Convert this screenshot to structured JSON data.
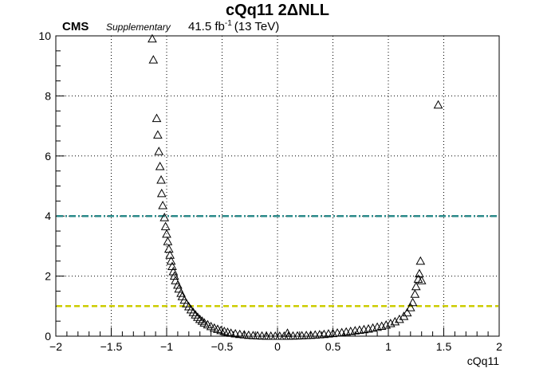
{
  "header": {
    "title": "cQq11 2ΔNLL",
    "experiment": "CMS",
    "tag": "Supplementary",
    "luminosity": "41.5 fb",
    "lumi_exponent": "-1",
    "energy": "(13 TeV)"
  },
  "chart_data": {
    "type": "scatter",
    "title": "cQq11 2ΔNLL",
    "xlabel": "cQq11",
    "ylabel": "",
    "xlim": [
      -2,
      2
    ],
    "ylim": [
      0,
      10
    ],
    "grid": true,
    "marker": "open-triangle",
    "x_ticks": [
      -2,
      -1.5,
      -1,
      -0.5,
      0,
      0.5,
      1,
      1.5,
      2
    ],
    "x_tick_labels": [
      "−2",
      "−1.5",
      "−1",
      "−0.5",
      "0",
      "0.5",
      "1",
      "1.5",
      "2"
    ],
    "y_ticks": [
      0,
      2,
      4,
      6,
      8,
      10
    ],
    "y_tick_labels": [
      "0",
      "2",
      "4",
      "6",
      "8",
      "10"
    ],
    "reference_lines": [
      {
        "y": 4,
        "color": "#2b8a8a",
        "style": "dash-dot"
      },
      {
        "y": 1,
        "color": "#cccc00",
        "style": "dashed"
      }
    ],
    "points": [
      {
        "x": -1.13,
        "y": 9.9
      },
      {
        "x": -1.12,
        "y": 9.2
      },
      {
        "x": -1.09,
        "y": 7.25
      },
      {
        "x": -1.08,
        "y": 6.7
      },
      {
        "x": -1.07,
        "y": 6.15
      },
      {
        "x": -1.06,
        "y": 5.65
      },
      {
        "x": -1.05,
        "y": 5.2
      },
      {
        "x": -1.045,
        "y": 4.75
      },
      {
        "x": -1.035,
        "y": 4.35
      },
      {
        "x": -1.02,
        "y": 3.95
      },
      {
        "x": -1.01,
        "y": 3.65
      },
      {
        "x": -1.0,
        "y": 3.4
      },
      {
        "x": -0.99,
        "y": 3.15
      },
      {
        "x": -0.98,
        "y": 2.9
      },
      {
        "x": -0.97,
        "y": 2.7
      },
      {
        "x": -0.96,
        "y": 2.5
      },
      {
        "x": -0.95,
        "y": 2.32
      },
      {
        "x": -0.94,
        "y": 2.15
      },
      {
        "x": -0.93,
        "y": 2.0
      },
      {
        "x": -0.92,
        "y": 1.85
      },
      {
        "x": -0.9,
        "y": 1.7
      },
      {
        "x": -0.89,
        "y": 1.57
      },
      {
        "x": -0.87,
        "y": 1.43
      },
      {
        "x": -0.86,
        "y": 1.32
      },
      {
        "x": -0.84,
        "y": 1.2
      },
      {
        "x": -0.82,
        "y": 1.08
      },
      {
        "x": -0.8,
        "y": 0.98
      },
      {
        "x": -0.78,
        "y": 0.88
      },
      {
        "x": -0.76,
        "y": 0.79
      },
      {
        "x": -0.74,
        "y": 0.71
      },
      {
        "x": -0.72,
        "y": 0.63
      },
      {
        "x": -0.7,
        "y": 0.56
      },
      {
        "x": -0.68,
        "y": 0.5
      },
      {
        "x": -0.66,
        "y": 0.44
      },
      {
        "x": -0.63,
        "y": 0.38
      },
      {
        "x": -0.6,
        "y": 0.32
      },
      {
        "x": -0.57,
        "y": 0.27
      },
      {
        "x": -0.54,
        "y": 0.23
      },
      {
        "x": -0.51,
        "y": 0.19
      },
      {
        "x": -0.48,
        "y": 0.16
      },
      {
        "x": -0.45,
        "y": 0.13
      },
      {
        "x": -0.42,
        "y": 0.1
      },
      {
        "x": -0.38,
        "y": 0.08
      },
      {
        "x": -0.34,
        "y": 0.06
      },
      {
        "x": -0.3,
        "y": 0.045
      },
      {
        "x": -0.26,
        "y": 0.03
      },
      {
        "x": -0.22,
        "y": 0.02
      },
      {
        "x": -0.18,
        "y": 0.012
      },
      {
        "x": -0.14,
        "y": 0.006
      },
      {
        "x": -0.1,
        "y": 0.003
      },
      {
        "x": -0.06,
        "y": 0.001
      },
      {
        "x": -0.02,
        "y": 0.0
      },
      {
        "x": 0.02,
        "y": 0.0
      },
      {
        "x": 0.06,
        "y": 0.001
      },
      {
        "x": 0.09,
        "y": 0.1
      },
      {
        "x": 0.1,
        "y": 0.003
      },
      {
        "x": 0.14,
        "y": 0.006
      },
      {
        "x": 0.18,
        "y": 0.01
      },
      {
        "x": 0.22,
        "y": 0.015
      },
      {
        "x": 0.26,
        "y": 0.022
      },
      {
        "x": 0.3,
        "y": 0.03
      },
      {
        "x": 0.34,
        "y": 0.04
      },
      {
        "x": 0.38,
        "y": 0.05
      },
      {
        "x": 0.42,
        "y": 0.06
      },
      {
        "x": 0.46,
        "y": 0.075
      },
      {
        "x": 0.5,
        "y": 0.09
      },
      {
        "x": 0.54,
        "y": 0.105
      },
      {
        "x": 0.58,
        "y": 0.12
      },
      {
        "x": 0.62,
        "y": 0.14
      },
      {
        "x": 0.66,
        "y": 0.16
      },
      {
        "x": 0.7,
        "y": 0.18
      },
      {
        "x": 0.74,
        "y": 0.2
      },
      {
        "x": 0.78,
        "y": 0.22
      },
      {
        "x": 0.82,
        "y": 0.24
      },
      {
        "x": 0.86,
        "y": 0.27
      },
      {
        "x": 0.9,
        "y": 0.3
      },
      {
        "x": 0.94,
        "y": 0.33
      },
      {
        "x": 0.98,
        "y": 0.37
      },
      {
        "x": 1.02,
        "y": 0.42
      },
      {
        "x": 1.06,
        "y": 0.48
      },
      {
        "x": 1.1,
        "y": 0.56
      },
      {
        "x": 1.14,
        "y": 0.66
      },
      {
        "x": 1.17,
        "y": 0.78
      },
      {
        "x": 1.2,
        "y": 0.95
      },
      {
        "x": 1.22,
        "y": 1.12
      },
      {
        "x": 1.24,
        "y": 1.4
      },
      {
        "x": 1.25,
        "y": 1.65
      },
      {
        "x": 1.27,
        "y": 1.9
      },
      {
        "x": 1.28,
        "y": 2.08
      },
      {
        "x": 1.3,
        "y": 1.85
      },
      {
        "x": 1.29,
        "y": 2.5
      },
      {
        "x": 1.45,
        "y": 7.7
      }
    ]
  }
}
